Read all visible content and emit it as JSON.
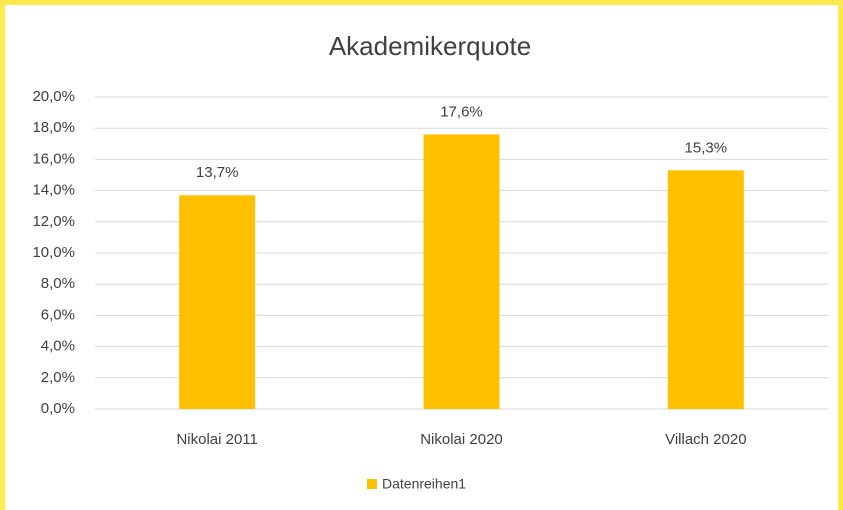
{
  "chart_data": {
    "type": "bar",
    "title": "Akademikerquote",
    "categories": [
      "Nikolai 2011",
      "Nikolai 2020",
      "Villach 2020"
    ],
    "series": [
      {
        "name": "Datenreihen1",
        "color": "#ffc000",
        "values": [
          13.7,
          17.6,
          15.3
        ],
        "value_labels": [
          "13,7%",
          "17,6%",
          "15,3%"
        ]
      }
    ],
    "ylim": [
      0,
      20
    ],
    "yticks": [
      {
        "value": 0,
        "label": "0,0%"
      },
      {
        "value": 2,
        "label": "2,0%"
      },
      {
        "value": 4,
        "label": "4,0%"
      },
      {
        "value": 6,
        "label": "6,0%"
      },
      {
        "value": 8,
        "label": "8,0%"
      },
      {
        "value": 10,
        "label": "10,0%"
      },
      {
        "value": 12,
        "label": "12,0%"
      },
      {
        "value": 14,
        "label": "14,0%"
      },
      {
        "value": 16,
        "label": "16,0%"
      },
      {
        "value": 18,
        "label": "18,0%"
      },
      {
        "value": 20,
        "label": "20,0%"
      }
    ],
    "grid": true,
    "legend": "bottom"
  }
}
